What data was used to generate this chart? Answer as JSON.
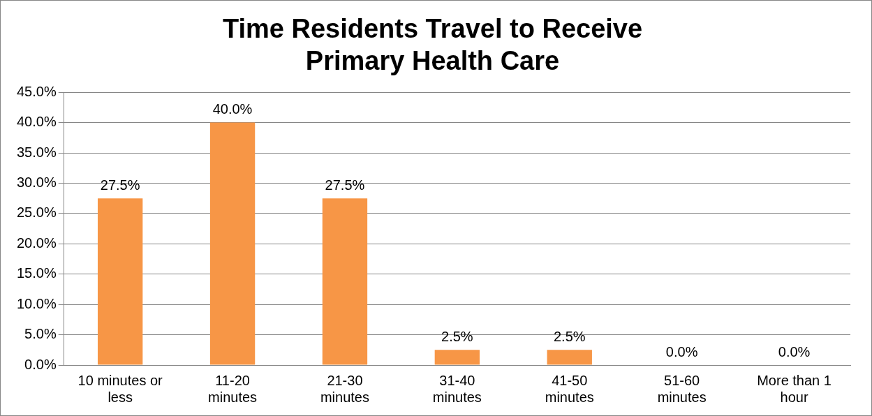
{
  "chart_data": {
    "type": "bar",
    "title": "Time Residents Travel to Receive Primary Health Care",
    "categories": [
      "10 minutes or less",
      "11-20 minutes",
      "21-30 minutes",
      "31-40 minutes",
      "41-50 minutes",
      "51-60 minutes",
      "More than 1 hour"
    ],
    "values": [
      27.5,
      40,
      27.5,
      2.5,
      2.5,
      0,
      0
    ],
    "value_labels": [
      "27.5%",
      "40.0%",
      "27.5%",
      "2.5%",
      "2.5%",
      "0.0%",
      "0.0%"
    ],
    "color": "#f79646",
    "ylim": [
      0,
      45
    ],
    "yticks": [
      {
        "value": 0,
        "label": "0.0%"
      },
      {
        "value": 5,
        "label": "5.0%"
      },
      {
        "value": 10,
        "label": "10.0%"
      },
      {
        "value": 15,
        "label": "15.0%"
      },
      {
        "value": 20,
        "label": "20.0%"
      },
      {
        "value": 25,
        "label": "25.0%"
      },
      {
        "value": 30,
        "label": "30.0%"
      },
      {
        "value": 35,
        "label": "35.0%"
      },
      {
        "value": 40,
        "label": "40.0%"
      },
      {
        "value": 45,
        "label": "45.0%"
      }
    ],
    "grid": "y",
    "legend": false
  }
}
